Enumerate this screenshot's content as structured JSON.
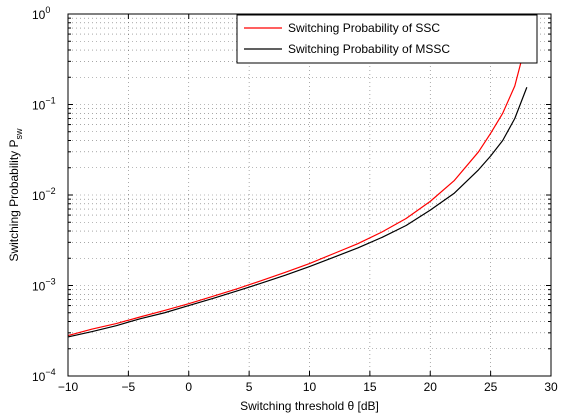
{
  "chart_data": {
    "type": "line",
    "xlabel": "Switching threshold θ [dB]",
    "ylabel": "Switching Probability P",
    "ylabel_sub": "sw",
    "xlim": [
      -10,
      30
    ],
    "ylim": [
      0.0001,
      1
    ],
    "yscale": "log",
    "grid": true,
    "legend_position": "top-right",
    "x_ticks": [
      -10,
      -5,
      0,
      5,
      10,
      15,
      20,
      25,
      30
    ],
    "x_tick_labels": [
      "−10",
      "−5",
      "0",
      "5",
      "10",
      "15",
      "20",
      "25",
      "30"
    ],
    "y_ticks": [
      {
        "value": 0.0001,
        "base": "10",
        "exp": "−4"
      },
      {
        "value": 0.001,
        "base": "10",
        "exp": "−3"
      },
      {
        "value": 0.01,
        "base": "10",
        "exp": "−2"
      },
      {
        "value": 0.1,
        "base": "10",
        "exp": "−1"
      },
      {
        "value": 1,
        "base": "10",
        "exp": "0"
      }
    ],
    "x": [
      -10,
      -8,
      -6,
      -4,
      -2,
      0,
      2,
      4,
      6,
      8,
      10,
      12,
      14,
      16,
      18,
      20,
      22,
      24,
      25,
      26,
      27,
      28
    ],
    "series": [
      {
        "name": "Switching Probability of SSC",
        "color": "#ff0000",
        "values": [
          0.00028,
          0.00033,
          0.00038,
          0.00045,
          0.00053,
          0.00063,
          0.00076,
          0.00092,
          0.00113,
          0.0014,
          0.00175,
          0.00225,
          0.0029,
          0.0039,
          0.0055,
          0.0085,
          0.0145,
          0.03,
          0.048,
          0.08,
          0.16,
          0.52
        ]
      },
      {
        "name": "Switching Probability of MSSC",
        "color": "#000000",
        "values": [
          0.00027,
          0.00031,
          0.00036,
          0.00043,
          0.0005,
          0.0006,
          0.00072,
          0.00087,
          0.00106,
          0.0013,
          0.00162,
          0.00205,
          0.0026,
          0.0034,
          0.0046,
          0.0068,
          0.0105,
          0.019,
          0.027,
          0.04,
          0.07,
          0.155
        ]
      }
    ]
  }
}
